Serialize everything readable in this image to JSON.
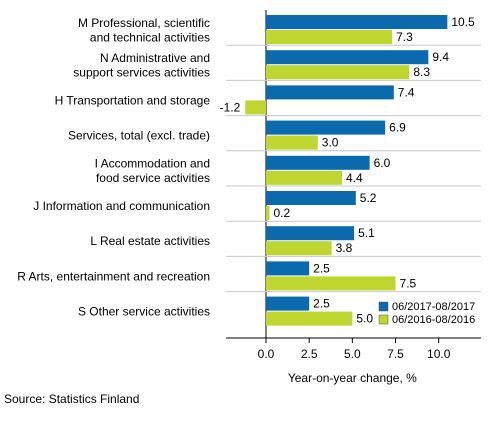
{
  "chart_data": {
    "type": "bar",
    "orientation": "horizontal",
    "categories": [
      [
        "M Professional, scientific",
        "and technical activities"
      ],
      [
        "N Administrative and",
        "support services activities"
      ],
      [
        "H Transportation and storage"
      ],
      [
        "Services, total (excl. trade)"
      ],
      [
        "I Accommodation and",
        "food service activities"
      ],
      [
        "J Information and communication"
      ],
      [
        "L Real estate activities"
      ],
      [
        "R Arts, entertainment and recreation"
      ],
      [
        "S Other service activities"
      ]
    ],
    "series": [
      {
        "name": "06/2017-08/2017",
        "color": "#0a6aad",
        "values": [
          10.5,
          9.4,
          7.4,
          6.9,
          6.0,
          5.2,
          5.1,
          2.5,
          2.5
        ],
        "labels": [
          "10.5",
          "9.4",
          "7.4",
          "6.9",
          "6.0",
          "5.2",
          "5.1",
          "2.5",
          "2.5"
        ]
      },
      {
        "name": "06/2016-08/2016",
        "color": "#bed62f",
        "values": [
          7.3,
          8.3,
          -1.2,
          3.0,
          4.4,
          0.2,
          3.8,
          7.5,
          5.0
        ],
        "labels": [
          "7.3",
          "8.3",
          "-1.2",
          "3.0",
          "4.4",
          "0.2",
          "3.8",
          "7.5",
          "5.0"
        ]
      }
    ],
    "xlabel": "Year-on-year change, %",
    "xlim": [
      -2.5,
      12.5
    ],
    "xticks": [
      0.0,
      2.5,
      5.0,
      7.5,
      10.0
    ],
    "xtick_labels": [
      "0.0",
      "2.5",
      "5.0",
      "7.5",
      "10.0"
    ],
    "grid": "horizontal separators between categories",
    "legend_position": "bottom-right"
  },
  "source": "Source: Statistics Finland"
}
